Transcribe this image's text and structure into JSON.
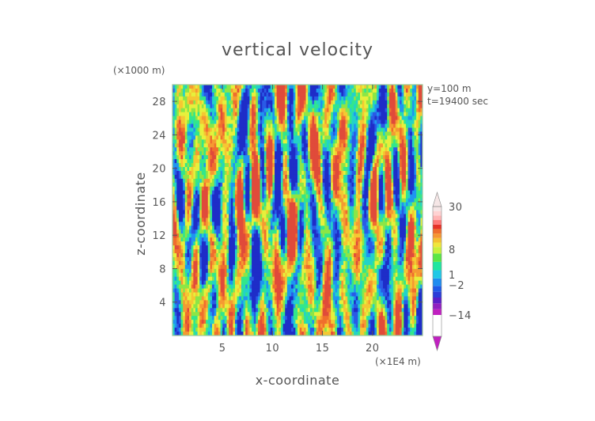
{
  "chart_data": {
    "type": "heatmap",
    "title": "vertical velocity",
    "xlabel": "x-coordinate",
    "ylabel": "z-coordinate",
    "x_unit": "(×1E4 m)",
    "y_unit": "(×1000 m)",
    "annotations": [
      "y=100 m",
      "t=19400 sec"
    ],
    "xlim": [
      0,
      25
    ],
    "ylim": [
      0,
      30
    ],
    "x_ticks": [
      5,
      10,
      15,
      20
    ],
    "y_ticks": [
      4,
      8,
      12,
      16,
      20,
      24,
      28
    ],
    "colorbar": {
      "tick_labels": [
        "30",
        "8",
        "1",
        "−2",
        "−14"
      ],
      "tick_values": [
        30,
        8,
        1,
        -2,
        -14
      ],
      "range": [
        -14,
        30
      ],
      "colors": [
        "#c020c0",
        "#9020c0",
        "#5a1ec8",
        "#2a3cd8",
        "#1e5ae8",
        "#1e8cf0",
        "#20c8e6",
        "#20e6a0",
        "#5ae646",
        "#c8f03c",
        "#f0e63c",
        "#f5c032",
        "#f59632",
        "#f06e2d",
        "#e63228",
        "#ff7878",
        "#ffb4b4",
        "#ffd2d2",
        "#f5e6e6"
      ]
    }
  }
}
